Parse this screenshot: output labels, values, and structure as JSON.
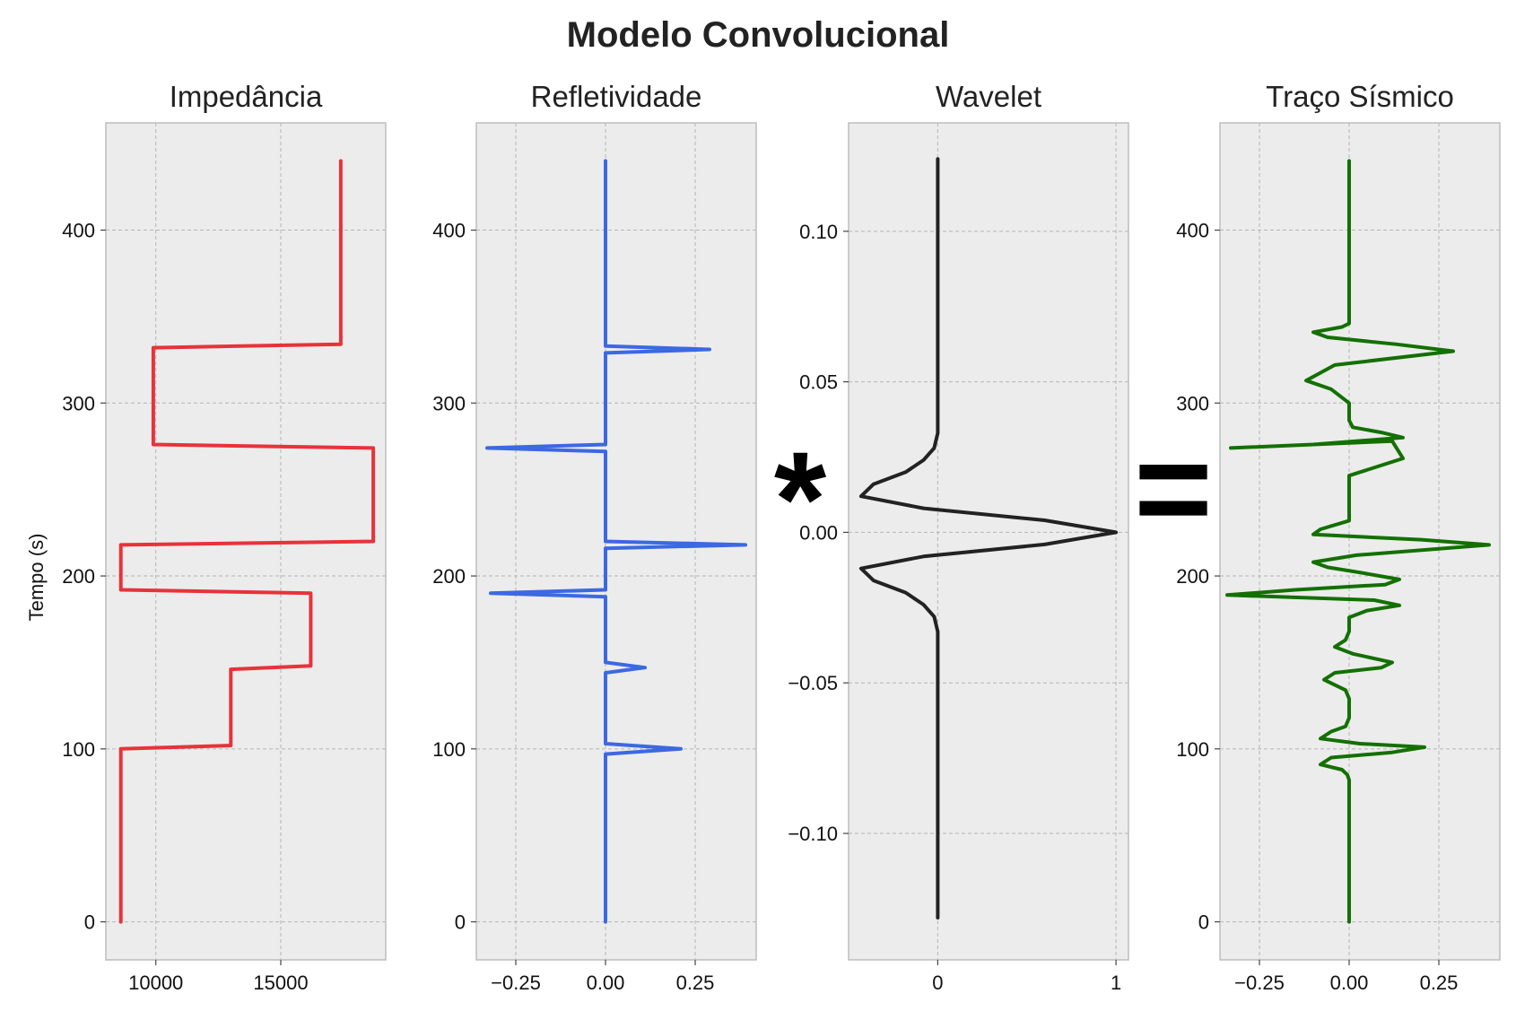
{
  "figure": {
    "title": "Modelo Convolucional",
    "operators": [
      "*",
      "="
    ]
  },
  "chart_data": [
    {
      "type": "line",
      "title": "Impedância",
      "xlabel": "",
      "ylabel": "Tempo (s)",
      "color": "#e8323a",
      "xlim": [
        8000,
        19200
      ],
      "ylim": [
        -22,
        462
      ],
      "xticks": [
        10000,
        15000
      ],
      "yticks": [
        0,
        100,
        200,
        300,
        400
      ],
      "grid": true,
      "x": [
        8600,
        8600,
        13000,
        13000,
        16200,
        16200,
        8600,
        8600,
        18700,
        18700,
        9900,
        9900,
        17400,
        17400
      ],
      "y": [
        0,
        100,
        102,
        146,
        148,
        190,
        192,
        218,
        220,
        274,
        276,
        332,
        334,
        440
      ]
    },
    {
      "type": "line",
      "title": "Refletividade",
      "xlabel": "",
      "ylabel": "",
      "color": "#3c68e3",
      "xlim": [
        -0.36,
        0.42
      ],
      "ylim": [
        -22,
        462
      ],
      "xticks": [
        -0.25,
        0.0,
        0.25
      ],
      "yticks": [
        0,
        100,
        200,
        300,
        400
      ],
      "grid": true,
      "x": [
        0,
        0,
        0.21,
        0,
        0,
        0.11,
        0,
        0,
        -0.32,
        0,
        0,
        0.39,
        0,
        0,
        -0.33,
        0,
        0,
        0.29,
        0,
        0
      ],
      "y": [
        0,
        97,
        100,
        103,
        144,
        147,
        150,
        188,
        190,
        192,
        216,
        218,
        220,
        272,
        274,
        276,
        329,
        331,
        333,
        440
      ]
    },
    {
      "type": "line",
      "title": "Wavelet",
      "xlabel": "",
      "ylabel": "",
      "color": "#222222",
      "xlim": [
        -0.5,
        1.07
      ],
      "ylim": [
        -0.142,
        0.136
      ],
      "xticks": [
        0,
        1
      ],
      "yticks": [
        -0.1,
        -0.05,
        0.0,
        0.05,
        0.1
      ],
      "grid": true,
      "x": [
        0,
        0,
        0,
        -0.02,
        -0.08,
        -0.18,
        -0.36,
        -0.43,
        -0.08,
        0.6,
        1.0,
        0.6,
        -0.08,
        -0.43,
        -0.36,
        -0.18,
        -0.08,
        -0.02,
        0,
        0,
        0
      ],
      "y": [
        -0.128,
        -0.04,
        -0.033,
        -0.028,
        -0.024,
        -0.02,
        -0.016,
        -0.012,
        -0.008,
        -0.004,
        0,
        0.004,
        0.008,
        0.012,
        0.016,
        0.02,
        0.024,
        0.028,
        0.033,
        0.04,
        0.124
      ]
    },
    {
      "type": "line",
      "title": "Traço Sísmico",
      "xlabel": "",
      "ylabel": "",
      "color": "#137000",
      "xlim": [
        -0.36,
        0.42
      ],
      "ylim": [
        -22,
        462
      ],
      "xticks": [
        -0.25,
        0.0,
        0.25
      ],
      "yticks": [
        0,
        100,
        200,
        300,
        400
      ],
      "grid": true,
      "x": [
        0,
        0,
        -0.005,
        -0.02,
        -0.08,
        -0.05,
        0.12,
        0.21,
        0.03,
        -0.08,
        -0.05,
        -0.01,
        0,
        0,
        -0.01,
        -0.07,
        -0.04,
        0.09,
        0.12,
        0.01,
        -0.04,
        -0.01,
        0,
        0,
        0.05,
        0.14,
        0.07,
        -0.34,
        -0.15,
        0.1,
        0.14,
        0.03,
        -0.06,
        -0.1,
        0.02,
        0.39,
        0.2,
        -0.1,
        -0.08,
        0,
        0,
        0,
        0.15,
        0.12,
        -0.33,
        -0.1,
        0.15,
        0.09,
        0.01,
        0,
        0,
        -0.05,
        -0.12,
        -0.04,
        0.29,
        0.13,
        -0.06,
        -0.1,
        -0.02,
        0,
        0
      ],
      "y": [
        0,
        82,
        85,
        88,
        91,
        95,
        98,
        101,
        103,
        106,
        110,
        113,
        118,
        129,
        134,
        140,
        144,
        147,
        150,
        155,
        159,
        163,
        168,
        176,
        180,
        183,
        186,
        189,
        192,
        195,
        198,
        202,
        205,
        208,
        212,
        218,
        221,
        224,
        227,
        232,
        248,
        258,
        268,
        278,
        274,
        276,
        280,
        283,
        286,
        290,
        300,
        308,
        313,
        322,
        330,
        334,
        338,
        341,
        344,
        346,
        440
      ]
    }
  ]
}
